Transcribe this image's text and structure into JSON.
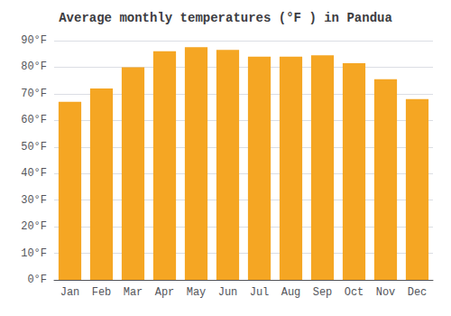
{
  "chart_data": {
    "type": "bar",
    "title": "Average monthly temperatures (°F ) in Pandua",
    "categories": [
      "Jan",
      "Feb",
      "Mar",
      "Apr",
      "May",
      "Jun",
      "Jul",
      "Aug",
      "Sep",
      "Oct",
      "Nov",
      "Dec"
    ],
    "values": [
      67,
      72,
      80,
      86,
      87.5,
      86.5,
      84,
      84,
      84.5,
      81.5,
      75.5,
      68
    ],
    "color": "#F5A623",
    "ylim": [
      0,
      90
    ],
    "yticks": [
      {
        "value": 0,
        "label": "0°F"
      },
      {
        "value": 10,
        "label": "10°F"
      },
      {
        "value": 20,
        "label": "20°F"
      },
      {
        "value": 30,
        "label": "30°F"
      },
      {
        "value": 40,
        "label": "40°F"
      },
      {
        "value": 50,
        "label": "50°F"
      },
      {
        "value": 60,
        "label": "60°F"
      },
      {
        "value": 70,
        "label": "70°F"
      },
      {
        "value": 80,
        "label": "80°F"
      },
      {
        "value": 90,
        "label": "90°F"
      }
    ],
    "grid": true
  }
}
